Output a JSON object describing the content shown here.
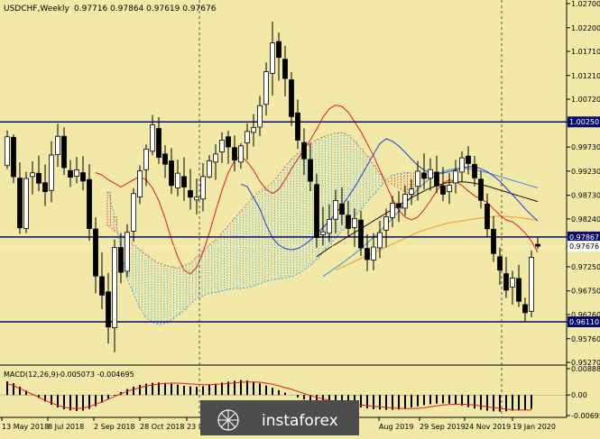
{
  "header": {
    "symbol": "USDCHF,Weekly",
    "ohlc": "0.97716 0.97864 0.97619 0.97676"
  },
  "macd": {
    "label": "MACD(12,26,9)",
    "values": "-0.005073 -0.004695"
  },
  "watermark": {
    "text": "instaforex"
  },
  "colors": {
    "background": "#f2e8a7",
    "axis": "#000000",
    "bull_body": "#ffffff",
    "bear_body": "#000000",
    "hline": "#0a0a6e",
    "tenkan": "#e11b1b",
    "kijun": "#1f3fd6",
    "senkou_a": "#e06a5a",
    "senkou_b": "#4aa9d6",
    "cloud_bear": "#d24b3c",
    "cloud_bull": "#59b7e0",
    "ma_black": "#111111",
    "ma_orange": "#f2a33a",
    "ma_blue": "#3c8ae0",
    "chikou": "#e8e8e8",
    "macd_bar": "#000000",
    "macd_signal": "#e11b1b",
    "highlight_price": "#0a0a6e"
  },
  "chart_data": [
    {
      "type": "candlestick",
      "title": "USDCHF,Weekly",
      "x_tick_labels": [
        "13 May 2018",
        "8 Jul 2018",
        "2 Sep 2018",
        "28 Oct 2018",
        "23 Dec 2018",
        "Aug 2019",
        "29 Sep 2019",
        "24 Nov 2019",
        "19 Jan 2020"
      ],
      "y_tick_labels": [
        "1.02700",
        "1.02200",
        "1.01710",
        "1.01210",
        "1.00720",
        "1.00250",
        "0.99730",
        "0.99230",
        "0.98730",
        "0.98240",
        "0.97867",
        "0.97676",
        "0.97250",
        "0.96750",
        "0.96260",
        "0.96110",
        "0.95760",
        "0.95270"
      ],
      "highlighted_prices": [
        "1.00250",
        "0.97867",
        "0.96110"
      ],
      "current_price": "0.97676",
      "ylim": [
        0.9527,
        1.027
      ],
      "horizontal_levels": [
        1.0025,
        0.97867,
        0.9611
      ],
      "vertical_markers": [
        "23 Dec 2018",
        "24 Nov 2019"
      ],
      "candles": [
        [
          0.99345,
          1.00071,
          0.99273,
          0.99942
        ],
        [
          0.99931,
          0.99994,
          0.98978,
          0.99116
        ],
        [
          0.99086,
          0.99412,
          0.9793,
          0.98057
        ],
        [
          0.98043,
          0.99215,
          0.97944,
          0.99079
        ],
        [
          0.99119,
          0.99434,
          0.9875,
          0.99194
        ],
        [
          0.99185,
          0.99552,
          0.98814,
          0.98981
        ],
        [
          0.98991,
          0.99367,
          0.9851,
          0.98807
        ],
        [
          0.98832,
          0.9985,
          0.98586,
          0.99565
        ],
        [
          0.99571,
          1.00213,
          0.99321,
          0.99952
        ],
        [
          0.99952,
          1.00138,
          0.9915,
          0.99304
        ],
        [
          0.99242,
          0.99462,
          0.98901,
          0.99105
        ],
        [
          0.99124,
          0.99522,
          0.98979,
          0.99258
        ],
        [
          0.99199,
          0.99541,
          0.98832,
          0.99025
        ],
        [
          0.99057,
          0.99375,
          0.97788,
          0.98041
        ],
        [
          0.98033,
          0.98273,
          0.96701,
          0.97058
        ],
        [
          0.97045,
          0.97549,
          0.96373,
          0.96664
        ],
        [
          0.96731,
          0.97119,
          0.9566,
          0.96003
        ],
        [
          0.95987,
          0.97813,
          0.95479,
          0.97647
        ],
        [
          0.97649,
          0.97952,
          0.96907,
          0.97136
        ],
        [
          0.97157,
          0.98129,
          0.97038,
          0.97964
        ],
        [
          0.97988,
          0.98878,
          0.97767,
          0.98765
        ],
        [
          0.98695,
          0.99352,
          0.98549,
          0.99239
        ],
        [
          0.99261,
          0.99781,
          0.98921,
          0.99688
        ],
        [
          0.99643,
          1.00391,
          0.99559,
          1.0019
        ],
        [
          1.00114,
          1.00347,
          0.9938,
          0.99514
        ],
        [
          0.99586,
          0.99768,
          0.99088,
          0.99373
        ],
        [
          0.99442,
          0.99707,
          0.98756,
          0.98933
        ],
        [
          0.98883,
          0.99467,
          0.98709,
          0.99187
        ],
        [
          0.99118,
          0.99518,
          0.98612,
          0.98902
        ],
        [
          0.98828,
          0.99276,
          0.98435,
          0.98691
        ],
        [
          0.98634,
          0.99078,
          0.98335,
          0.9869
        ],
        [
          0.98653,
          0.99398,
          0.98395,
          0.99119
        ],
        [
          0.99112,
          0.99567,
          0.99082,
          0.99445
        ],
        [
          0.99418,
          0.9979,
          0.9905,
          0.99585
        ],
        [
          0.99629,
          1.00038,
          0.99399,
          0.99874
        ],
        [
          0.99942,
          1.00065,
          0.99382,
          0.99732
        ],
        [
          0.99718,
          0.99967,
          0.99224,
          0.99459
        ],
        [
          0.99418,
          0.99807,
          0.99278,
          0.99754
        ],
        [
          0.99814,
          1.00219,
          0.99466,
          1.00053
        ],
        [
          1.00033,
          1.00413,
          0.99738,
          1.00137
        ],
        [
          1.00143,
          1.00788,
          0.99956,
          1.00587
        ],
        [
          1.00614,
          1.01482,
          1.00383,
          1.0129
        ],
        [
          1.01253,
          1.02324,
          1.00794,
          1.01885
        ],
        [
          1.01915,
          1.02101,
          1.01104,
          1.01586
        ],
        [
          1.01548,
          1.01826,
          1.00776,
          1.0115
        ],
        [
          1.01121,
          1.01278,
          1.00165,
          1.00359
        ],
        [
          1.00437,
          1.00711,
          0.99691,
          0.99873
        ],
        [
          0.99822,
          1.00119,
          0.9915,
          0.99486
        ],
        [
          0.99472,
          0.99811,
          0.98818,
          0.99023
        ],
        [
          0.98952,
          0.99178,
          0.97641,
          0.97856
        ],
        [
          0.97912,
          0.98491,
          0.97693,
          0.97974
        ],
        [
          0.97943,
          0.98542,
          0.97763,
          0.98232
        ],
        [
          0.98235,
          0.98844,
          0.97941,
          0.98622
        ],
        [
          0.98552,
          0.98896,
          0.98112,
          0.98337
        ],
        [
          0.98315,
          0.98613,
          0.97869,
          0.98045
        ],
        [
          0.98063,
          0.98461,
          0.97661,
          0.98251
        ],
        [
          0.98218,
          0.98413,
          0.97474,
          0.97639
        ],
        [
          0.9763,
          0.97926,
          0.9716,
          0.97399
        ],
        [
          0.97387,
          0.97946,
          0.97181,
          0.97658
        ],
        [
          0.97642,
          0.98204,
          0.9743,
          0.97957
        ],
        [
          0.98009,
          0.98456,
          0.97647,
          0.98285
        ],
        [
          0.98267,
          0.98716,
          0.98068,
          0.98567
        ],
        [
          0.98559,
          0.9882,
          0.98177,
          0.98477
        ],
        [
          0.98464,
          0.98935,
          0.98309,
          0.98753
        ],
        [
          0.98749,
          0.99061,
          0.98531,
          0.98862
        ],
        [
          0.98916,
          0.99441,
          0.98622,
          0.99229
        ],
        [
          0.99192,
          0.99598,
          0.98852,
          0.99081
        ],
        [
          0.99083,
          0.99495,
          0.98826,
          0.99262
        ],
        [
          0.9921,
          0.99552,
          0.98777,
          0.98924
        ],
        [
          0.98929,
          0.99318,
          0.98608,
          0.98753
        ],
        [
          0.98805,
          0.99192,
          0.9855,
          0.98938
        ],
        [
          0.98987,
          0.99463,
          0.98769,
          0.99234
        ],
        [
          0.99211,
          0.99642,
          0.98998,
          0.99505
        ],
        [
          0.99542,
          0.99746,
          0.99162,
          0.99388
        ],
        [
          0.99371,
          0.99542,
          0.98916,
          0.9909
        ],
        [
          0.99065,
          0.99243,
          0.98457,
          0.98626
        ],
        [
          0.98548,
          0.98765,
          0.97873,
          0.98036
        ],
        [
          0.98027,
          0.98299,
          0.97351,
          0.97524
        ],
        [
          0.97458,
          0.97649,
          0.96872,
          0.9718
        ],
        [
          0.97106,
          0.97452,
          0.96604,
          0.96766
        ],
        [
          0.96827,
          0.97164,
          0.96462,
          0.97014
        ],
        [
          0.97007,
          0.97294,
          0.96419,
          0.96535
        ],
        [
          0.96466,
          0.96612,
          0.96101,
          0.96298
        ],
        [
          0.96329,
          0.97587,
          0.96202,
          0.97445
        ],
        [
          0.97716,
          0.97864,
          0.97619,
          0.97676
        ]
      ],
      "indicators": {
        "tenkan": [
          0.992,
          0.9915,
          0.9905,
          0.9898,
          0.989,
          0.9898,
          0.9905,
          0.9912,
          0.9905,
          0.9888,
          0.9862,
          0.9825,
          0.9782,
          0.9745,
          0.9718,
          0.971,
          0.9724,
          0.9755,
          0.9795,
          0.984,
          0.9883,
          0.992,
          0.9945,
          0.9955,
          0.9942,
          0.9925,
          0.9902,
          0.9885,
          0.9877,
          0.9885,
          0.9905,
          0.9928,
          0.9948,
          0.9968,
          0.9988,
          1.001,
          1.0035,
          1.0052,
          1.006,
          1.0057,
          1.0045,
          1.0025,
          1.0005,
          0.998,
          0.9955,
          0.9925,
          0.9895,
          0.9865,
          0.9842,
          0.9828,
          0.9822,
          0.9828,
          0.9843,
          0.9862,
          0.9882,
          0.9898,
          0.9905,
          0.9902,
          0.9893,
          0.9882,
          0.9872,
          0.9865,
          0.9858,
          0.9845,
          0.9832,
          0.9822,
          0.9818,
          0.9808,
          0.9795,
          0.9778,
          0.9755
        ],
        "kijun": [
          0.9896,
          0.9891,
          0.9868,
          0.9845,
          0.9812,
          0.9785,
          0.977,
          0.9763,
          0.976,
          0.9763,
          0.977,
          0.978,
          0.9793,
          0.9806,
          0.982,
          0.9835,
          0.9851,
          0.987,
          0.989,
          0.9912,
          0.9935,
          0.9958,
          0.998,
          0.999,
          0.9985,
          0.9975,
          0.9962,
          0.9948,
          0.9935,
          0.9925,
          0.992,
          0.9918,
          0.9919,
          0.9922,
          0.9926,
          0.993,
          0.9932,
          0.9933,
          0.9928,
          0.9922,
          0.9913,
          0.9902,
          0.9888,
          0.9874,
          0.986,
          0.9845,
          0.9832,
          0.982
        ],
        "ma_black": [
          0.9746,
          0.9755,
          0.9764,
          0.9772,
          0.978,
          0.9788,
          0.9796,
          0.9804,
          0.9812,
          0.982,
          0.9828,
          0.9836,
          0.9844,
          0.9852,
          0.986,
          0.9868,
          0.9875,
          0.9882,
          0.9888,
          0.9893,
          0.9897,
          0.99,
          0.9901,
          0.9901,
          0.99,
          0.9898,
          0.9895,
          0.9892,
          0.9888,
          0.9884,
          0.988,
          0.9876,
          0.9872,
          0.9868,
          0.9864,
          0.986
        ],
        "ma_orange": [
          0.9718,
          0.9724,
          0.973,
          0.9736,
          0.9742,
          0.9748,
          0.9754,
          0.976,
          0.9766,
          0.9772,
          0.9778,
          0.9784,
          0.979,
          0.9796,
          0.9801,
          0.9805,
          0.9809,
          0.9813,
          0.9816,
          0.9818,
          0.982,
          0.9822,
          0.9824,
          0.9826,
          0.9828,
          0.9829,
          0.983,
          0.9829,
          0.9828,
          0.9827,
          0.9825,
          0.9823,
          0.9821
        ],
        "ma_blue": [
          0.9705,
          0.9714,
          0.9723,
          0.9732,
          0.9742,
          0.9752,
          0.9762,
          0.9774,
          0.9786,
          0.9798,
          0.9812,
          0.9826,
          0.984,
          0.9855,
          0.987,
          0.9885,
          0.9898,
          0.9908,
          0.9916,
          0.9922,
          0.9926,
          0.9928,
          0.9929,
          0.9928,
          0.9926,
          0.9923,
          0.992,
          0.9916,
          0.9912,
          0.9908,
          0.9904,
          0.99,
          0.9896,
          0.9892,
          0.9889
        ],
        "senkou_a": [
          0.981,
          0.98,
          0.979,
          0.978,
          0.977,
          0.976,
          0.975,
          0.974,
          0.9733,
          0.9728,
          0.9725,
          0.9722,
          0.9728,
          0.9732,
          0.9745,
          0.9758,
          0.977,
          0.978,
          0.9795,
          0.981,
          0.9825,
          0.984,
          0.9855,
          0.987,
          0.9882,
          0.989,
          0.99,
          0.9915,
          0.9932,
          0.9948,
          0.996,
          0.997,
          0.998,
          0.9988,
          0.9994,
          0.9998,
          1.0002,
          1.0003,
          0.9998,
          0.9985,
          0.997,
          0.9955,
          0.9935,
          0.9918,
          0.9905,
          0.9895,
          0.9888,
          0.988,
          0.9875
        ],
        "senkou_b": [
          0.988,
          0.983,
          0.976,
          0.97,
          0.967,
          0.964,
          0.962,
          0.961,
          0.9605,
          0.9608,
          0.9615,
          0.9625,
          0.9635,
          0.9648,
          0.966,
          0.9665,
          0.967,
          0.9672,
          0.9675,
          0.9678,
          0.968,
          0.968,
          0.9682,
          0.9685,
          0.969,
          0.9695,
          0.9698,
          0.97,
          0.9702,
          0.9705,
          0.971,
          0.9718,
          0.9728,
          0.974,
          0.9755,
          0.977,
          0.9785,
          0.98,
          0.9815,
          0.983,
          0.9845,
          0.986,
          0.9875,
          0.989,
          0.9905,
          0.9915,
          0.9918,
          0.992,
          0.992
        ],
        "macd_hist": [
          0.0046,
          0.004,
          0.0028,
          0.0015,
          0.0002,
          -0.001,
          -0.0022,
          -0.0033,
          -0.0042,
          -0.0048,
          -0.0052,
          -0.0054,
          -0.0053,
          -0.0047,
          -0.0038,
          -0.0026,
          -0.0014,
          -0.0002,
          0.001,
          0.002,
          0.0028,
          0.0034,
          0.0038,
          0.0041,
          0.0042,
          0.0041,
          0.0038,
          0.0035,
          0.0031,
          0.0029,
          0.0028,
          0.003,
          0.0034,
          0.0038,
          0.0042,
          0.0045,
          0.0048,
          0.005,
          0.0049,
          0.0045,
          0.0039,
          0.0032,
          0.0024,
          0.0016,
          0.0008,
          0.0,
          -0.0008,
          -0.0015,
          -0.002,
          -0.0024,
          -0.0027,
          -0.0029,
          -0.0031,
          -0.0033,
          -0.0036,
          -0.0039,
          -0.0042,
          -0.0045,
          -0.0048,
          -0.0049,
          -0.005,
          -0.005,
          -0.0049,
          -0.0046,
          -0.0042,
          -0.0038,
          -0.0034,
          -0.0031,
          -0.0029,
          -0.0028,
          -0.0029,
          -0.0032,
          -0.0036,
          -0.0041,
          -0.0046,
          -0.005,
          -0.0053,
          -0.0055,
          -0.0056,
          -0.0055,
          -0.0053,
          -0.0051,
          -0.0051,
          -0.0047
        ],
        "macd_signal": [
          0.0038,
          0.0032,
          0.0022,
          0.0012,
          0.0002,
          -0.0008,
          -0.0018,
          -0.0027,
          -0.0035,
          -0.0041,
          -0.0045,
          -0.0046,
          -0.0044,
          -0.0039,
          -0.0032,
          -0.0023,
          -0.0014,
          -0.0005,
          0.0004,
          0.0012,
          0.0019,
          0.0025,
          0.003,
          0.0034,
          0.0037,
          0.0039,
          0.004,
          0.004,
          0.0039,
          0.0037,
          0.0036,
          0.0035,
          0.0035,
          0.0036,
          0.0037,
          0.0039,
          0.0041,
          0.0043,
          0.0044,
          0.0044,
          0.0043,
          0.004,
          0.0036,
          0.0031,
          0.0025,
          0.0019,
          0.0012,
          0.0005,
          -0.0002,
          -0.0008,
          -0.0013,
          -0.0018,
          -0.0022,
          -0.0026,
          -0.0029,
          -0.0032,
          -0.0034,
          -0.0036,
          -0.0038,
          -0.004,
          -0.0042,
          -0.0044,
          -0.0045,
          -0.0046,
          -0.0046,
          -0.0045,
          -0.0043,
          -0.004,
          -0.0037,
          -0.0034,
          -0.0032,
          -0.0031,
          -0.0031,
          -0.0032,
          -0.0034,
          -0.0037,
          -0.004,
          -0.0043,
          -0.0046,
          -0.0048,
          -0.005,
          -0.0051,
          -0.0051,
          -0.0051
        ]
      }
    },
    {
      "type": "bar",
      "title": "MACD(12,26,9)",
      "y_tick_labels": [
        "0.00888",
        "0.00",
        "-0.00695"
      ],
      "ylim": [
        -0.00695,
        0.00888
      ]
    }
  ]
}
